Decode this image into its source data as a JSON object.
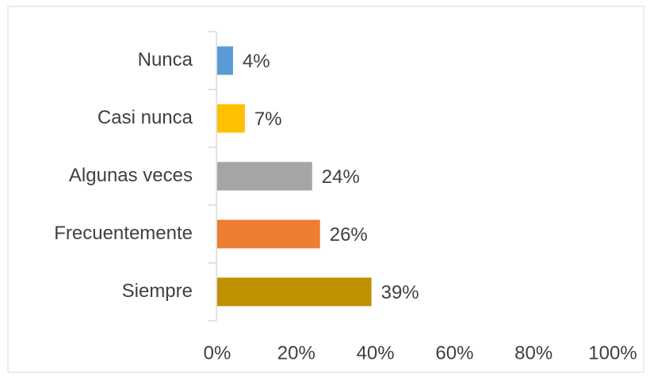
{
  "chart_data": {
    "type": "bar",
    "orientation": "horizontal",
    "categories": [
      "Nunca",
      "Casi nunca",
      "Algunas veces",
      "Frecuentemente",
      "Siempre"
    ],
    "values": [
      4,
      7,
      24,
      26,
      39
    ],
    "value_labels": [
      "4%",
      "7%",
      "24%",
      "26%",
      "39%"
    ],
    "colors": [
      "#5b9bd5",
      "#ffc000",
      "#a5a5a5",
      "#ed7d31",
      "#bf9000"
    ],
    "xlim": [
      0,
      100
    ],
    "xticks": [
      {
        "value": 0,
        "label": "0%"
      },
      {
        "value": 20,
        "label": "20%"
      },
      {
        "value": 40,
        "label": "40%"
      },
      {
        "value": 60,
        "label": "60%"
      },
      {
        "value": 80,
        "label": "80%"
      },
      {
        "value": 100,
        "label": "100%"
      }
    ],
    "grid": false
  }
}
